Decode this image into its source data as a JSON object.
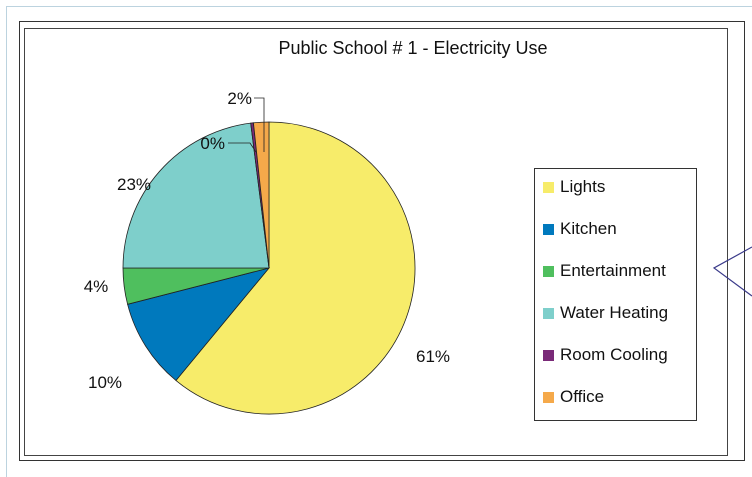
{
  "chart_data": {
    "type": "pie",
    "title": "Public School # 1 - Electricity Use",
    "slices": [
      {
        "name": "Lights",
        "value": 61,
        "label": "61%",
        "color": "#f7ec6a"
      },
      {
        "name": "Kitchen",
        "value": 10,
        "label": "10%",
        "color": "#0079bd"
      },
      {
        "name": "Entertainment",
        "value": 4,
        "label": "4%",
        "color": "#4fbf5e"
      },
      {
        "name": "Water Heating",
        "value": 23,
        "label": "23%",
        "color": "#7ecfcb"
      },
      {
        "name": "Room Cooling",
        "value": 0.3,
        "label": "0%",
        "color": "#7a2a78"
      },
      {
        "name": "Office",
        "value": 1.7,
        "label": "2%",
        "color": "#f5a94a"
      }
    ],
    "legend_position": "right",
    "grid": false
  }
}
